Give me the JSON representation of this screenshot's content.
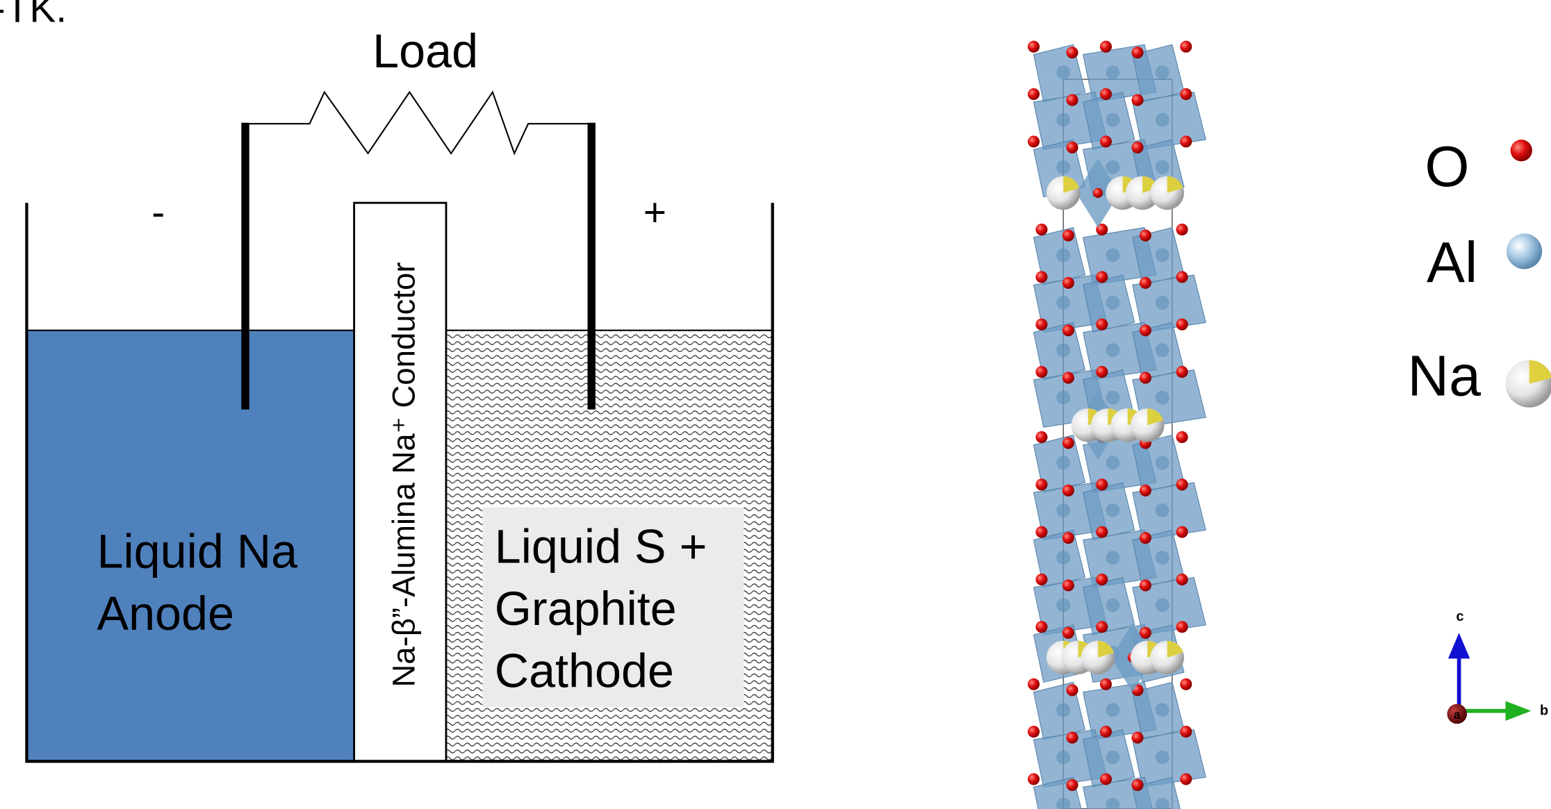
{
  "header": {
    "title": "-TK."
  },
  "cell": {
    "load_label": "Load",
    "minus": "-",
    "plus": "+",
    "separator": "Na-β”-Alumina Na⁺ Conductor",
    "anode": [
      "Liquid Na",
      "Anode"
    ],
    "cathode": [
      "Liquid S +",
      "Graphite",
      "Cathode"
    ]
  },
  "legend": [
    {
      "label": "O"
    },
    {
      "label": "Al"
    },
    {
      "label": "Na"
    }
  ],
  "axes": {
    "c": "c",
    "b": "b",
    "a": "a"
  }
}
